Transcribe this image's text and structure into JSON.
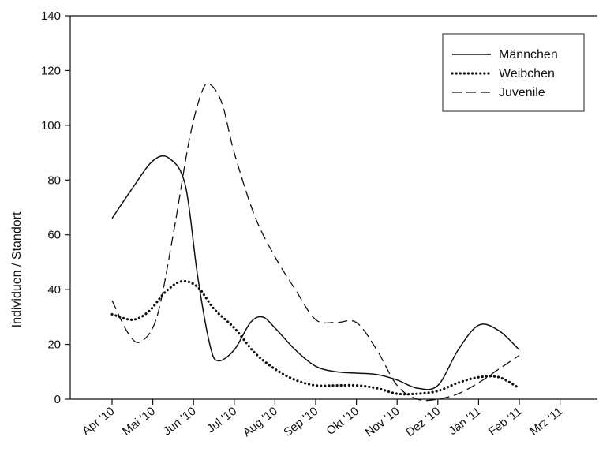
{
  "chart_data": {
    "type": "line",
    "title": "",
    "xlabel": "",
    "ylabel": "Individuen / Standort",
    "ylim": [
      0,
      140
    ],
    "yticks": [
      0,
      20,
      40,
      60,
      80,
      100,
      120,
      140
    ],
    "categories": [
      "Apr '10",
      "Mai '10",
      "Jun '10",
      "Jul '10",
      "Aug '10",
      "Sep '10",
      "Okt '10",
      "Nov '10",
      "Dez '10",
      "Jan '11",
      "Feb '11",
      "Mrz '11"
    ],
    "legend_position": "top-right",
    "grid": false,
    "series": [
      {
        "name": "Männchen",
        "style": "solid",
        "points": [
          [
            0,
            66
          ],
          [
            0.5,
            77
          ],
          [
            1,
            87
          ],
          [
            1.4,
            88
          ],
          [
            1.8,
            78
          ],
          [
            2.1,
            45
          ],
          [
            2.4,
            20
          ],
          [
            2.6,
            14
          ],
          [
            3,
            18
          ],
          [
            3.4,
            28
          ],
          [
            3.7,
            30
          ],
          [
            4,
            26
          ],
          [
            4.5,
            18
          ],
          [
            5,
            12
          ],
          [
            5.5,
            10
          ],
          [
            6,
            9.5
          ],
          [
            6.5,
            9
          ],
          [
            7,
            7
          ],
          [
            7.5,
            4
          ],
          [
            8,
            5
          ],
          [
            8.5,
            18
          ],
          [
            9,
            27
          ],
          [
            9.5,
            25
          ],
          [
            10,
            18
          ]
        ]
      },
      {
        "name": "Weibchen",
        "style": "dotted",
        "points": [
          [
            0,
            31
          ],
          [
            0.5,
            29
          ],
          [
            0.9,
            32
          ],
          [
            1.3,
            39
          ],
          [
            1.7,
            43
          ],
          [
            2.1,
            41
          ],
          [
            2.5,
            33
          ],
          [
            3,
            26
          ],
          [
            3.5,
            17
          ],
          [
            4,
            11
          ],
          [
            4.5,
            7
          ],
          [
            5,
            5
          ],
          [
            5.5,
            5
          ],
          [
            6,
            5
          ],
          [
            6.5,
            4
          ],
          [
            7,
            2
          ],
          [
            7.5,
            2
          ],
          [
            8,
            3
          ],
          [
            8.5,
            6
          ],
          [
            9,
            8
          ],
          [
            9.5,
            8
          ],
          [
            10,
            4
          ]
        ]
      },
      {
        "name": "Juvenile",
        "style": "dashed",
        "points": [
          [
            0,
            36
          ],
          [
            0.4,
            24
          ],
          [
            0.7,
            21
          ],
          [
            1.1,
            30
          ],
          [
            1.5,
            60
          ],
          [
            1.9,
            95
          ],
          [
            2.2,
            112
          ],
          [
            2.4,
            115
          ],
          [
            2.7,
            108
          ],
          [
            3,
            90
          ],
          [
            3.5,
            67
          ],
          [
            4,
            52
          ],
          [
            4.5,
            40
          ],
          [
            5,
            29
          ],
          [
            5.5,
            28
          ],
          [
            6,
            28
          ],
          [
            6.5,
            18
          ],
          [
            7,
            5
          ],
          [
            7.5,
            0
          ],
          [
            8,
            0
          ],
          [
            8.5,
            2
          ],
          [
            9,
            6
          ],
          [
            9.5,
            11
          ],
          [
            10,
            16
          ]
        ]
      }
    ]
  }
}
